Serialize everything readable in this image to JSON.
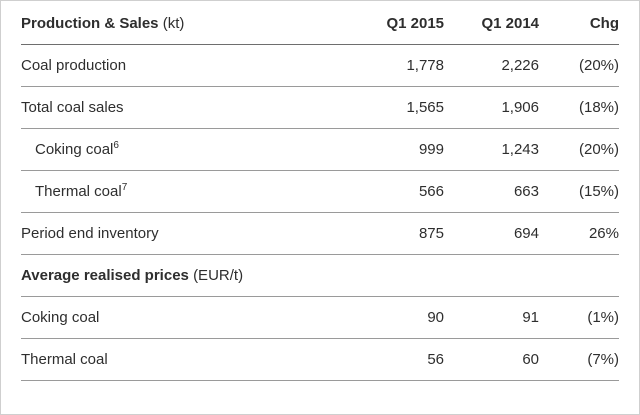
{
  "table": {
    "header": {
      "title": "Production & Sales",
      "unit": "(kt)",
      "columns": [
        "Q1 2015",
        "Q1 2014",
        "Chg"
      ]
    },
    "rows": [
      {
        "label": "Coal production",
        "values": [
          "1,778",
          "2,226",
          "(20%)"
        ]
      },
      {
        "label": "Total coal sales",
        "values": [
          "1,565",
          "1,906",
          "(18%)"
        ]
      },
      {
        "label": "Coking coal",
        "sup": "6",
        "values": [
          "999",
          "1,243",
          "(20%)"
        ]
      },
      {
        "label": "Thermal coal",
        "sup": "7",
        "values": [
          "566",
          "663",
          "(15%)"
        ]
      },
      {
        "label": "Period end inventory",
        "values": [
          "875",
          "694",
          "26%"
        ]
      }
    ],
    "section2": {
      "title": "Average realised prices",
      "unit": "(EUR/t)"
    },
    "rows2": [
      {
        "label": "Coking coal",
        "values": [
          "90",
          "91",
          "(1%)"
        ]
      },
      {
        "label": "Thermal coal",
        "values": [
          "56",
          "60",
          "(7%)"
        ]
      }
    ]
  },
  "colors": {
    "text": "#2e2e2e",
    "row_line": "#9a9a9a",
    "header_line": "#6e6e6e",
    "background": "#ffffff"
  }
}
